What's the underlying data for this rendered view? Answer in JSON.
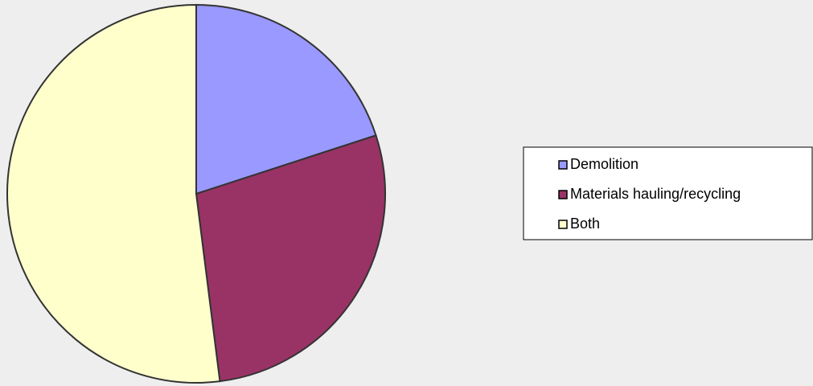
{
  "chart_data": {
    "type": "pie",
    "categories": [
      "Demolition",
      "Materials hauling/recycling",
      "Both"
    ],
    "values": [
      20,
      28,
      52
    ],
    "colors": [
      "#9999ff",
      "#993366",
      "#ffffcc"
    ],
    "legend": "right"
  }
}
